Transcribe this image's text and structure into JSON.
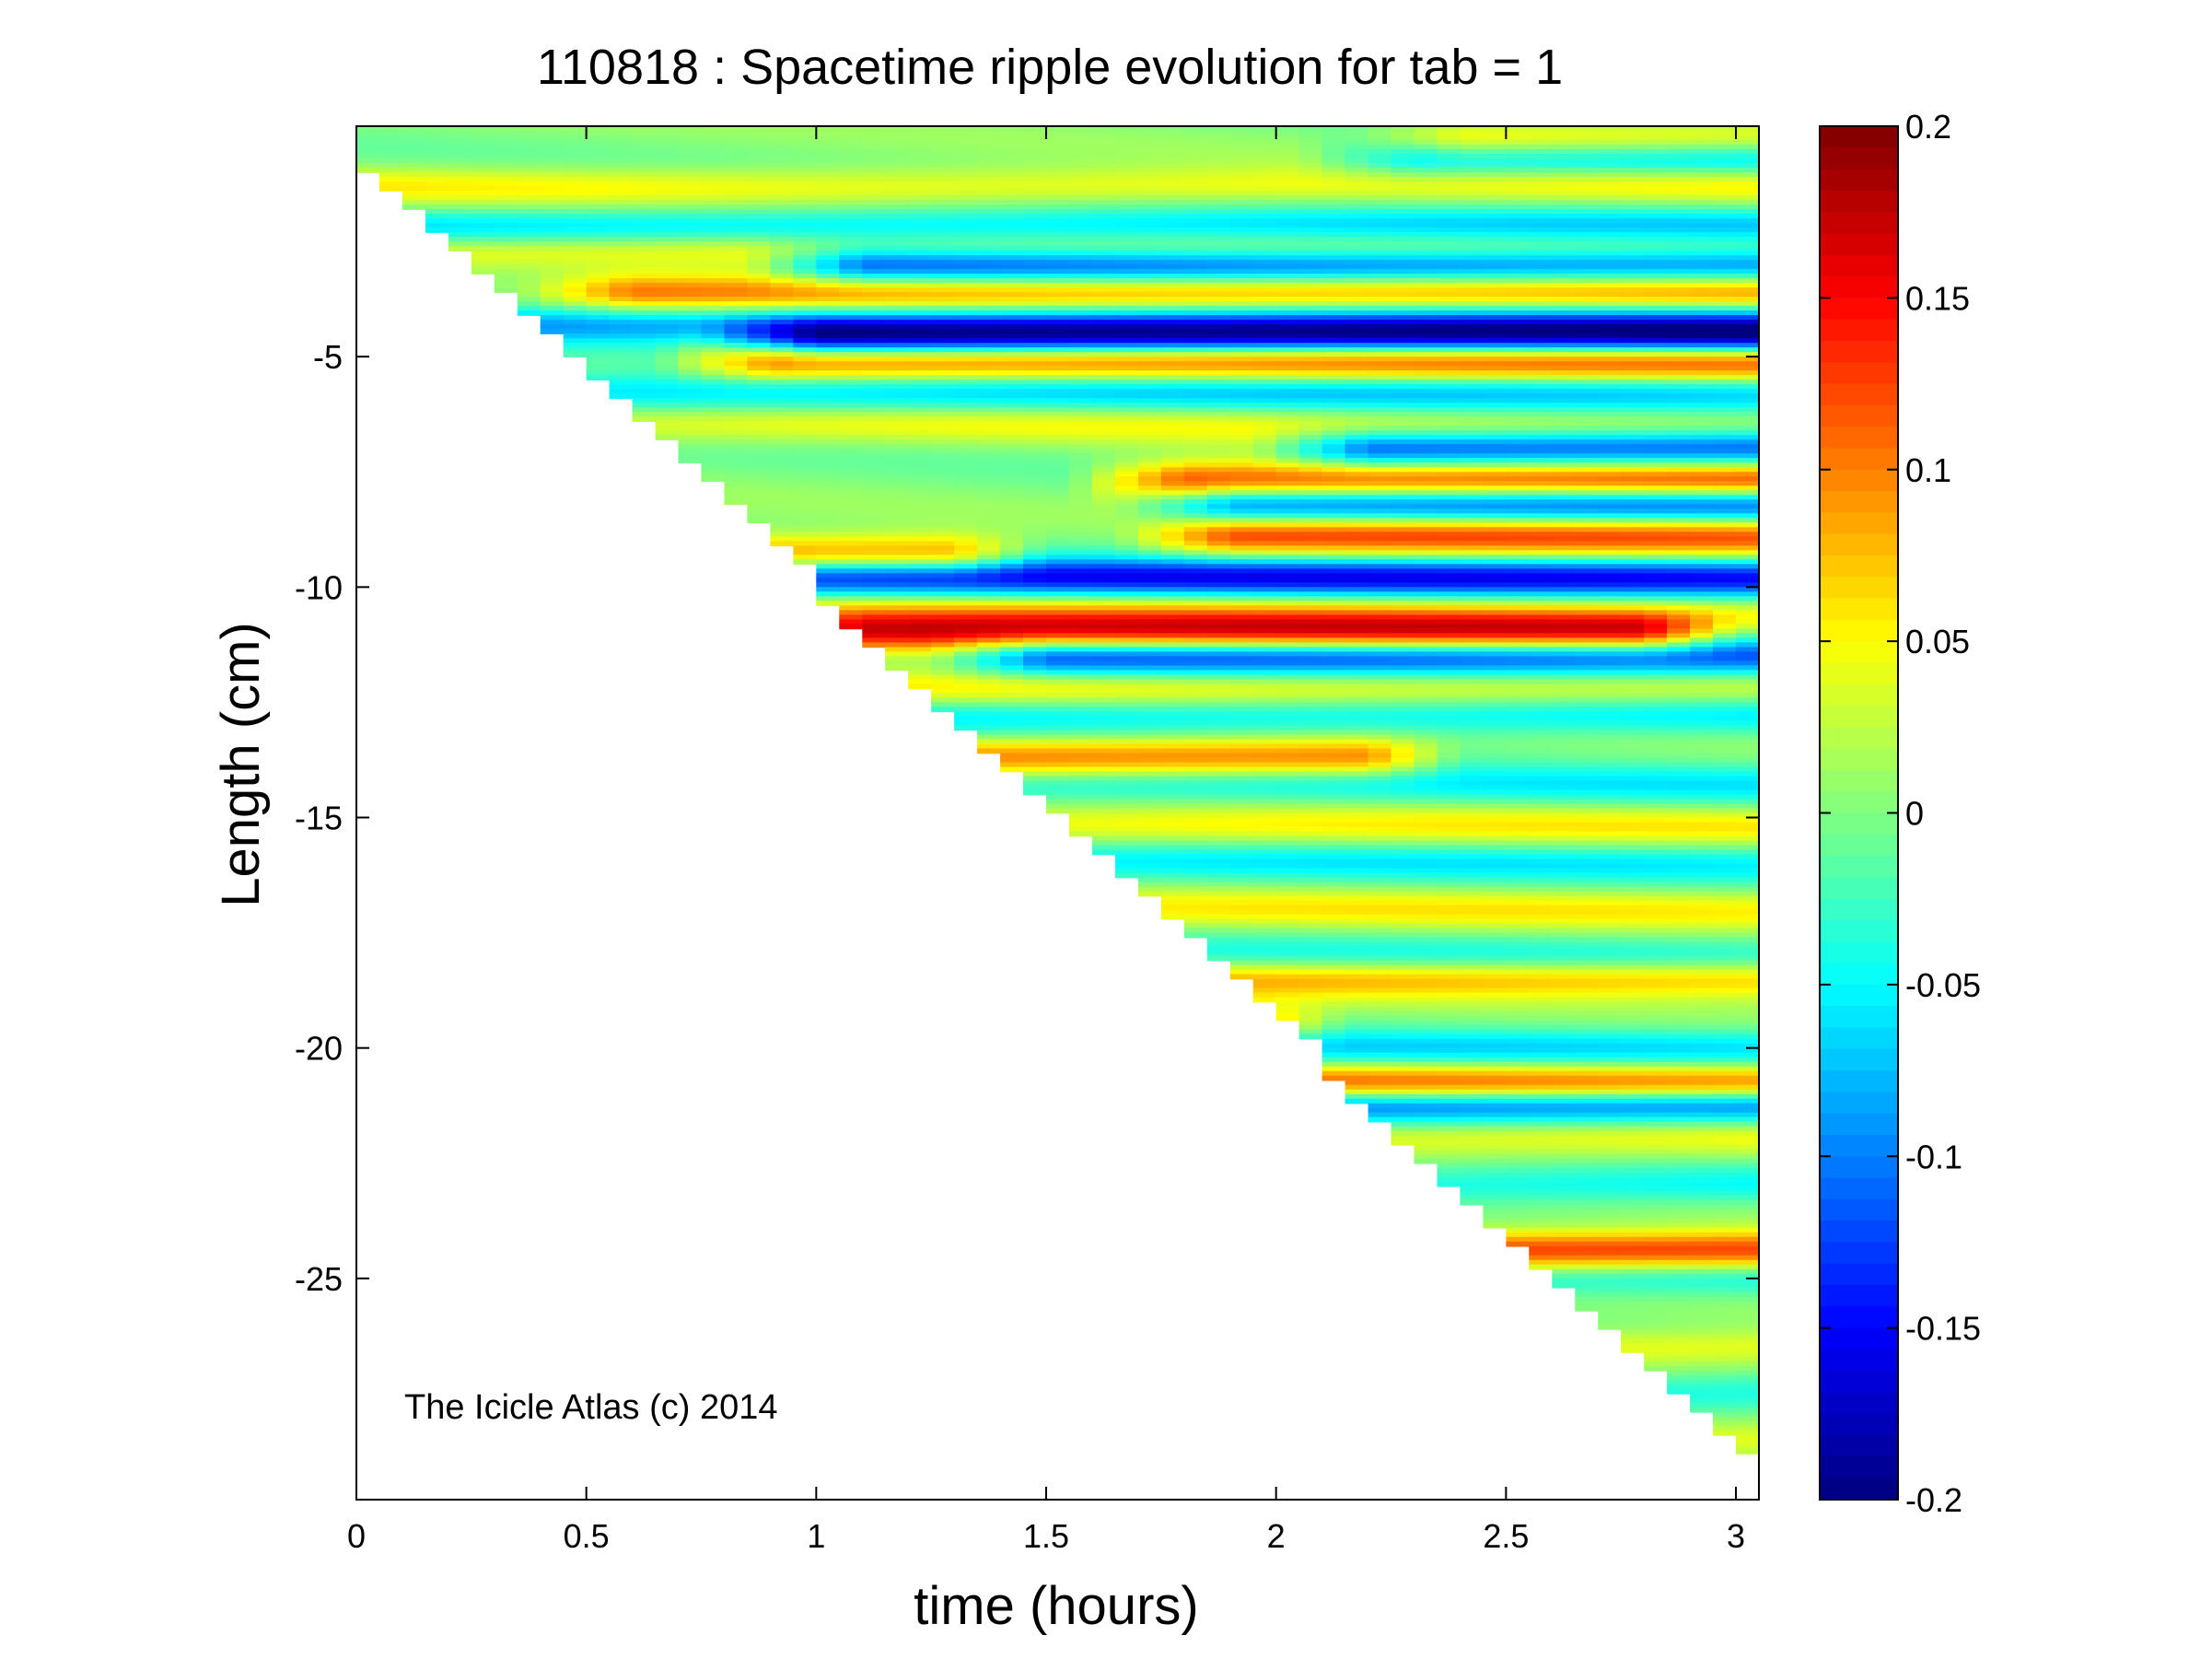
{
  "chart_data": {
    "type": "heatmap",
    "title": "110818 : Spacetime ripple evolution for tab = 1",
    "xlabel": "time (hours)",
    "ylabel": "Length (cm)",
    "xlim": [
      0,
      3.05
    ],
    "ylim": [
      -29.8,
      0
    ],
    "xticks": [
      0,
      0.5,
      1,
      1.5,
      2,
      2.5,
      3
    ],
    "xtick_labels": [
      "0",
      "0.5",
      "1",
      "1.5",
      "2",
      "2.5",
      "3"
    ],
    "yticks": [
      -5,
      -10,
      -15,
      -20,
      -25
    ],
    "ytick_labels": [
      "-5",
      "-10",
      "-15",
      "-20",
      "-25"
    ],
    "colorbar": {
      "colormap": "jet",
      "clim": [
        -0.2,
        0.2
      ],
      "ticks": [
        0.2,
        0.15,
        0.1,
        0.05,
        0,
        -0.05,
        -0.1,
        -0.15,
        -0.2
      ],
      "tick_labels": [
        "0.2",
        "0.15",
        "0.1",
        "0.05",
        "0",
        "-0.05",
        "-0.1",
        "-0.15",
        "-0.2"
      ]
    },
    "growth_front": [
      [
        0,
        -0.5
      ],
      [
        3.05,
        -29.2
      ]
    ],
    "bands": [
      {
        "y": -0.3,
        "amp": 0.07,
        "t0": 2.4
      },
      {
        "y": -0.7,
        "amp": -0.08,
        "t0": 2.3
      },
      {
        "y": -1.3,
        "amp": 0.05
      },
      {
        "y": -2.2,
        "amp": -0.07
      },
      {
        "y": -2.7,
        "amp": 0.06
      },
      {
        "y": -3.0,
        "amp": -0.14,
        "t0": 1.1
      },
      {
        "y": -3.6,
        "amp": 0.1,
        "t0": 0.6
      },
      {
        "y": -4.3,
        "amp": -0.09
      },
      {
        "y": -4.6,
        "amp": -0.16,
        "t0": 1.0
      },
      {
        "y": -5.1,
        "amp": 0.13,
        "t0": 0.9
      },
      {
        "y": -5.8,
        "amp": -0.07
      },
      {
        "y": -6.5,
        "amp": 0.04
      },
      {
        "y": -7.0,
        "amp": -0.13,
        "t0": 2.2
      },
      {
        "y": -7.7,
        "amp": 0.14,
        "t0": 1.8
      },
      {
        "y": -8.2,
        "amp": -0.12,
        "t0": 1.9
      },
      {
        "y": -8.9,
        "amp": 0.12,
        "t0": 1.9
      },
      {
        "y": -9.3,
        "amp": 0.11,
        "t0": 0.8,
        "t1": 1.3
      },
      {
        "y": -9.8,
        "amp": -0.15,
        "t0": 1.0
      },
      {
        "y": -10.6,
        "amp": 0.06
      },
      {
        "y": -11.0,
        "amp": 0.15,
        "t0": 1.1,
        "t1": 2.8
      },
      {
        "y": -11.5,
        "amp": -0.13,
        "t0": 1.5
      },
      {
        "y": -12.2,
        "amp": 0.05
      },
      {
        "y": -12.8,
        "amp": -0.06
      },
      {
        "y": -13.7,
        "amp": 0.11,
        "t0": 1.2,
        "t1": 2.2
      },
      {
        "y": -14.3,
        "amp": -0.05
      },
      {
        "y": -15.2,
        "amp": 0.05
      },
      {
        "y": -16.0,
        "amp": -0.05
      },
      {
        "y": -17.0,
        "amp": 0.05
      },
      {
        "y": -18.0,
        "amp": -0.04
      },
      {
        "y": -18.5,
        "amp": 0.08,
        "t0": 1.8
      },
      {
        "y": -19.5,
        "amp": 0.1,
        "t0": 1.75,
        "t1": 1.95
      },
      {
        "y": -20.0,
        "amp": -0.06
      },
      {
        "y": -20.8,
        "amp": 0.14,
        "t0": 2.0
      },
      {
        "y": -21.2,
        "amp": -0.14,
        "t0": 2.05
      },
      {
        "y": -22.0,
        "amp": 0.05
      },
      {
        "y": -23.0,
        "amp": -0.05
      },
      {
        "y": -24.4,
        "amp": 0.14,
        "t0": 2.4
      },
      {
        "y": -25.0,
        "amp": -0.05
      },
      {
        "y": -26.5,
        "amp": 0.05
      },
      {
        "y": -27.5,
        "amp": -0.05
      },
      {
        "y": -28.5,
        "amp": 0.05
      }
    ]
  },
  "annotation": "The Icicle Atlas (c) 2014"
}
